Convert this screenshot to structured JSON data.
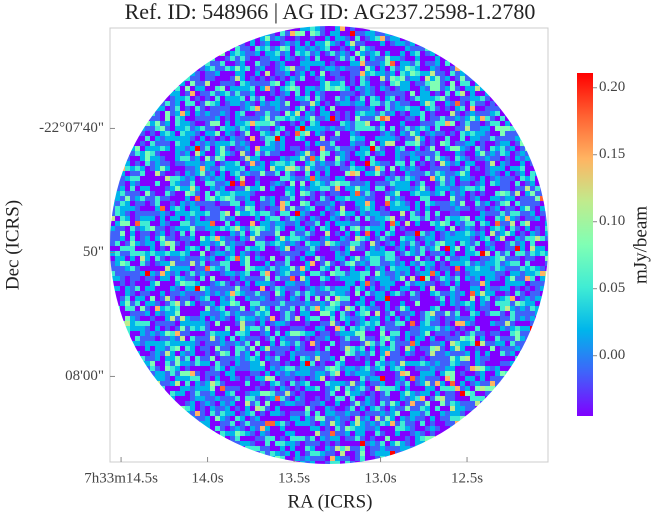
{
  "chart_data": {
    "type": "image",
    "title": "Ref. ID: 548966 | AG ID: AG237.2598-1.2780",
    "x_label": "RA (ICRS)",
    "y_label": "Dec (ICRS)",
    "colorbar_label": "mJy/beam",
    "colormap": "rainbow",
    "xlim": [
      14.564,
      12.032
    ],
    "xticks": [
      {
        "value": 14.5,
        "label": "7h33m14.5s"
      },
      {
        "value": 14.0,
        "label": "14.0s"
      },
      {
        "value": 13.5,
        "label": "13.5s"
      },
      {
        "value": 13.0,
        "label": "13.0s"
      },
      {
        "value": 12.5,
        "label": "12.5s"
      }
    ],
    "ylim": [
      31.9,
      66.9
    ],
    "yticks": [
      {
        "value": 40,
        "label": "-22°07'40\""
      },
      {
        "value": 50,
        "label": "50\""
      },
      {
        "value": 60,
        "label": "08'00\""
      }
    ],
    "clim": [
      -0.045,
      0.211
    ],
    "cticks": [
      {
        "value": 0.0,
        "label": "0.00"
      },
      {
        "value": 0.05,
        "label": "0.05"
      },
      {
        "value": 0.1,
        "label": "0.10"
      },
      {
        "value": 0.15,
        "label": "0.15"
      },
      {
        "value": 0.2,
        "label": "0.20"
      }
    ]
  }
}
